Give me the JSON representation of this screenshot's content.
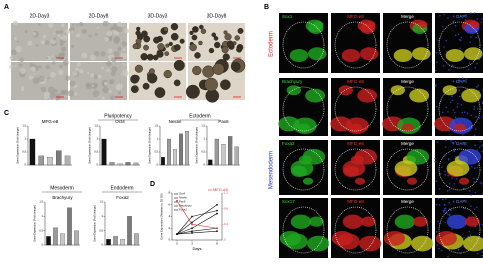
{
  "panels": {
    "a": "A",
    "b": "B",
    "c": "C",
    "d": "D"
  },
  "panel_a": {
    "columns": [
      "2D-Day3",
      "2D-Day8",
      "3D-Day3",
      "3D-Day8"
    ]
  },
  "panel_b": {
    "groups": [
      "Ectoderm",
      "Mesendoderm"
    ],
    "rows": [
      [
        "Sox1",
        "MFG-e8",
        "Merge",
        "+ DAPI"
      ],
      [
        "Brachyury",
        "MFG-e8",
        "Merge",
        "+ DAPI"
      ],
      [
        "Foxa2",
        "MFG-e8",
        "Merge",
        "+ DAPI"
      ],
      [
        "Sox17",
        "MFG-e8",
        "Merge",
        "+ DAPI"
      ]
    ]
  },
  "panel_c_groups": [
    "Pluripotency",
    "Ectoderm",
    "Mesoderm",
    "Endoderm"
  ],
  "chart_data": [
    {
      "type": "bar",
      "title": "MFG-e8",
      "ylabel": "Gene Expression (Fold change)",
      "values": [
        1,
        0.35,
        0.3,
        0.55,
        0.35
      ],
      "colors": [
        "#111111",
        "#9a9a9a",
        "#c8c8c8",
        "#7a7a7a",
        "#b0b0b0"
      ],
      "ylim": [
        0,
        1.5
      ],
      "yticks": [
        0,
        0.5,
        1,
        1.5
      ]
    },
    {
      "type": "bar",
      "title": "Oct4",
      "ylabel": "Gene Expression (Fold change)",
      "values": [
        1,
        0.1,
        0.05,
        0.1,
        0.08
      ],
      "colors": [
        "#111111",
        "#9a9a9a",
        "#c8c8c8",
        "#7a7a7a",
        "#b0b0b0"
      ],
      "ylim": [
        0,
        1.5
      ],
      "yticks": [
        0,
        0.5,
        1,
        1.5
      ]
    },
    {
      "type": "bar",
      "title": "Nestin",
      "ylabel": "Gene Expression (Fold change)",
      "values": [
        0.3,
        1,
        0.6,
        1.2,
        1.3
      ],
      "colors": [
        "#111111",
        "#9a9a9a",
        "#c8c8c8",
        "#7a7a7a",
        "#b0b0b0"
      ],
      "ylim": [
        0,
        1.5
      ],
      "yticks": [
        0,
        0.5,
        1,
        1.5
      ]
    },
    {
      "type": "bar",
      "title": "Pax6",
      "ylabel": "Gene Expression (Fold change)",
      "values": [
        0.2,
        1,
        0.8,
        1.1,
        0.7
      ],
      "colors": [
        "#111111",
        "#9a9a9a",
        "#c8c8c8",
        "#7a7a7a",
        "#b0b0b0"
      ],
      "ylim": [
        0,
        1.5
      ],
      "yticks": [
        0,
        0.5,
        1,
        1.5
      ]
    },
    {
      "type": "bar",
      "title": "Brachyury",
      "ylabel": "Gene Expression (Fold change)",
      "values": [
        0.3,
        0.6,
        0.4,
        1.3,
        0.5
      ],
      "colors": [
        "#111111",
        "#9a9a9a",
        "#c8c8c8",
        "#7a7a7a",
        "#b0b0b0"
      ],
      "ylim": [
        0,
        1.5
      ],
      "yticks": [
        0,
        0.5,
        1,
        1.5
      ]
    },
    {
      "type": "bar",
      "title": "Foxa2",
      "ylabel": "Gene Expression (Fold change)",
      "values": [
        0.2,
        0.3,
        0.2,
        1,
        0.4
      ],
      "colors": [
        "#111111",
        "#9a9a9a",
        "#c8c8c8",
        "#7a7a7a",
        "#b0b0b0"
      ],
      "ylim": [
        0,
        1.5
      ],
      "yticks": [
        0,
        0.5,
        1,
        1.5
      ]
    },
    {
      "type": "line",
      "xlabel": "Days",
      "ylabel": "Gene Expression (Relative to 2D-D0)",
      "x": [
        0,
        3,
        8
      ],
      "xlim": [
        -1,
        9
      ],
      "xticks": [
        0,
        3,
        8
      ],
      "ylim": [
        0,
        8
      ],
      "yticks": [
        0,
        2,
        4,
        6,
        8
      ],
      "y2lim": [
        0,
        1.2
      ],
      "y2ticks": [
        0,
        0.4,
        0.8,
        1.2
      ],
      "series": [
        {
          "name": "Oct4",
          "color": "#111111",
          "values": [
            1,
            3,
            6
          ]
        },
        {
          "name": "Nestin",
          "color": "#111111",
          "values": [
            1,
            4,
            5
          ]
        },
        {
          "name": "Pax6",
          "color": "#111111",
          "values": [
            1,
            2,
            4.5
          ]
        },
        {
          "name": "Brachyury",
          "color": "#111111",
          "values": [
            1,
            1.5,
            2
          ]
        },
        {
          "name": "Foxa2",
          "color": "#111111",
          "values": [
            1,
            1.2,
            1.5
          ]
        },
        {
          "name": "MFG-e8",
          "color": "#e8322f",
          "axis": "y2",
          "values": [
            1,
            0.4,
            0.3
          ]
        }
      ]
    }
  ]
}
